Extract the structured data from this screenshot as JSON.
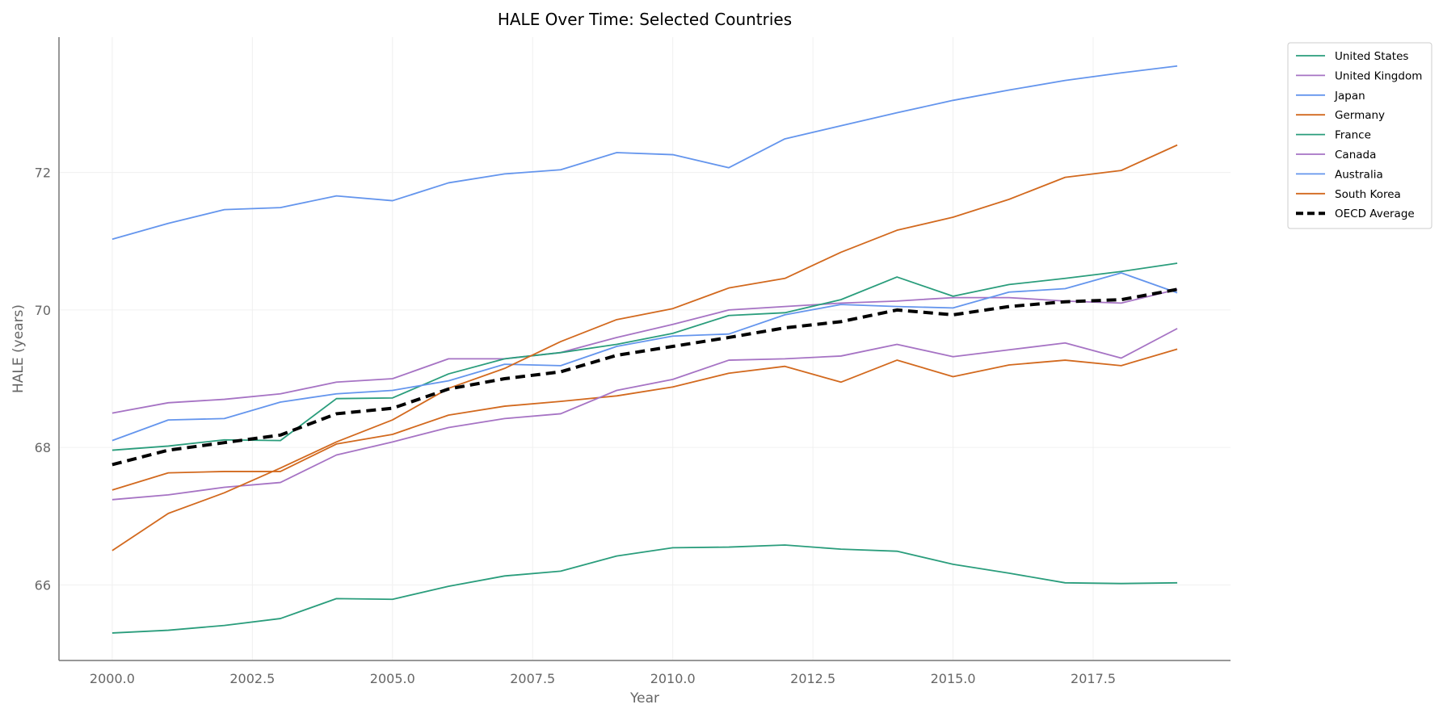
{
  "chart_data": {
    "type": "line",
    "title": "HALE Over Time: Selected Countries",
    "xlabel": "Year",
    "ylabel": "HALE (years)",
    "xlim": [
      1999.05,
      2019.95
    ],
    "ylim": [
      64.9,
      73.97
    ],
    "xticks": [
      2000.0,
      2002.5,
      2005.0,
      2007.5,
      2010.0,
      2012.5,
      2015.0,
      2017.5
    ],
    "xtick_labels": [
      "2000.0",
      "2002.5",
      "2005.0",
      "2007.5",
      "2010.0",
      "2012.5",
      "2015.0",
      "2017.5"
    ],
    "yticks": [
      66,
      68,
      70,
      72
    ],
    "ytick_labels": [
      "66",
      "68",
      "70",
      "72"
    ],
    "grid": true,
    "legend_position": "outside-top-right",
    "x": [
      2000,
      2001,
      2002,
      2003,
      2004,
      2005,
      2006,
      2007,
      2008,
      2009,
      2010,
      2011,
      2012,
      2013,
      2014,
      2015,
      2016,
      2017,
      2018,
      2019
    ],
    "series": [
      {
        "name": "United States",
        "color": "#2a9d7c",
        "dashed": false,
        "values": [
          65.3,
          65.34,
          65.41,
          65.51,
          65.8,
          65.79,
          65.98,
          66.13,
          66.2,
          66.42,
          66.54,
          66.55,
          66.58,
          66.52,
          66.49,
          66.3,
          66.17,
          66.03,
          66.02,
          66.03
        ]
      },
      {
        "name": "United Kingdom",
        "color": "#a673c4",
        "dashed": false,
        "values": [
          68.5,
          68.65,
          68.7,
          68.78,
          68.95,
          69.0,
          69.29,
          69.29,
          69.38,
          69.6,
          69.79,
          70.0,
          70.05,
          70.1,
          70.13,
          70.18,
          70.18,
          70.13,
          70.1,
          70.3
        ]
      },
      {
        "name": "Japan",
        "color": "#6495ed",
        "dashed": false,
        "values": [
          71.03,
          71.26,
          71.46,
          71.49,
          71.66,
          71.59,
          71.85,
          71.98,
          72.04,
          72.29,
          72.26,
          72.07,
          72.49,
          72.68,
          72.87,
          73.05,
          73.2,
          73.34,
          73.45,
          73.55
        ]
      },
      {
        "name": "Germany",
        "color": "#d2691e",
        "dashed": false,
        "values": [
          67.38,
          67.63,
          67.65,
          67.65,
          68.05,
          68.19,
          68.47,
          68.6,
          68.67,
          68.75,
          68.88,
          69.08,
          69.18,
          68.95,
          69.27,
          69.03,
          69.2,
          69.27,
          69.19,
          69.43
        ]
      },
      {
        "name": "France",
        "color": "#2a9d7c",
        "dashed": false,
        "values": [
          67.96,
          68.02,
          68.11,
          68.1,
          68.71,
          68.72,
          69.07,
          69.29,
          69.38,
          69.5,
          69.66,
          69.92,
          69.96,
          70.15,
          70.48,
          70.2,
          70.37,
          70.46,
          70.56,
          70.68
        ]
      },
      {
        "name": "Canada",
        "color": "#a673c4",
        "dashed": false,
        "values": [
          67.24,
          67.31,
          67.42,
          67.49,
          67.89,
          68.08,
          68.29,
          68.42,
          68.49,
          68.83,
          68.99,
          69.27,
          69.29,
          69.33,
          69.5,
          69.32,
          69.42,
          69.52,
          69.3,
          69.73
        ]
      },
      {
        "name": "Australia",
        "color": "#6495ed",
        "dashed": false,
        "values": [
          68.1,
          68.4,
          68.42,
          68.66,
          68.78,
          68.83,
          68.97,
          69.21,
          69.19,
          69.47,
          69.62,
          69.65,
          69.93,
          70.08,
          70.05,
          70.03,
          70.26,
          70.31,
          70.54,
          70.25
        ]
      },
      {
        "name": "South Korea",
        "color": "#d2691e",
        "dashed": false,
        "values": [
          66.5,
          67.04,
          67.34,
          67.7,
          68.08,
          68.4,
          68.86,
          69.15,
          69.54,
          69.86,
          70.02,
          70.32,
          70.46,
          70.84,
          71.16,
          71.35,
          71.61,
          71.93,
          72.03,
          72.4
        ]
      },
      {
        "name": "OECD Average",
        "color": "#000000",
        "dashed": true,
        "values": [
          67.75,
          67.96,
          68.07,
          68.18,
          68.49,
          68.57,
          68.85,
          69.0,
          69.1,
          69.34,
          69.47,
          69.6,
          69.74,
          69.83,
          70.0,
          69.93,
          70.05,
          70.12,
          70.15,
          70.3
        ]
      }
    ]
  }
}
